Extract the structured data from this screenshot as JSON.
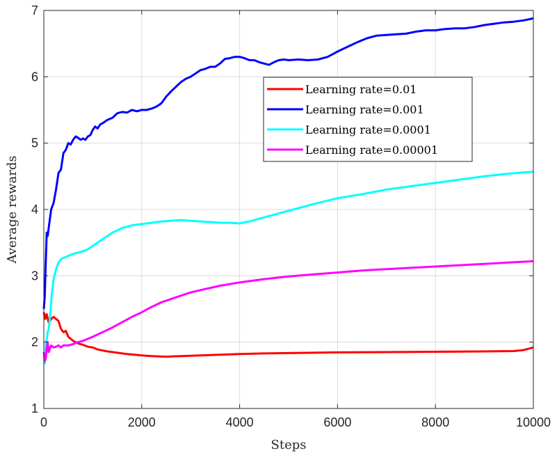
{
  "chart_data": {
    "type": "line",
    "title": "",
    "xlabel": "Steps",
    "ylabel": "Average rewards",
    "xlim": [
      0,
      10000
    ],
    "ylim": [
      1,
      7
    ],
    "xticks": [
      0,
      2000,
      4000,
      6000,
      8000,
      10000
    ],
    "xtick_labels": [
      "0",
      "2000",
      "4000",
      "6000",
      "8000",
      "10000"
    ],
    "yticks": [
      1,
      2,
      3,
      4,
      5,
      6,
      7
    ],
    "ytick_labels": [
      "1",
      "2",
      "3",
      "4",
      "5",
      "6",
      "7"
    ],
    "grid": true,
    "legend_position": "upper-right, inside plot",
    "series": [
      {
        "name": "Learning rate=0.01",
        "color": "#ff0000",
        "x": [
          0,
          30,
          60,
          100,
          150,
          200,
          250,
          300,
          350,
          400,
          450,
          500,
          600,
          700,
          800,
          900,
          1000,
          1100,
          1300,
          1500,
          1700,
          2000,
          2200,
          2500,
          2800,
          3200,
          3600,
          4000,
          4500,
          5000,
          5500,
          6000,
          7000,
          8000,
          9000,
          9600,
          9800,
          10000
        ],
        "y": [
          2.45,
          2.35,
          2.42,
          2.3,
          2.35,
          2.38,
          2.35,
          2.32,
          2.2,
          2.15,
          2.17,
          2.08,
          2.02,
          1.98,
          1.96,
          1.93,
          1.92,
          1.89,
          1.86,
          1.84,
          1.82,
          1.8,
          1.79,
          1.78,
          1.79,
          1.8,
          1.81,
          1.82,
          1.83,
          1.835,
          1.84,
          1.845,
          1.85,
          1.855,
          1.86,
          1.865,
          1.88,
          1.92
        ]
      },
      {
        "name": "Learning rate=0.001",
        "color": "#0000ff",
        "x": [
          0,
          20,
          40,
          60,
          80,
          100,
          150,
          200,
          250,
          300,
          350,
          400,
          450,
          500,
          550,
          600,
          650,
          700,
          750,
          800,
          850,
          900,
          950,
          1000,
          1050,
          1100,
          1150,
          1200,
          1300,
          1400,
          1500,
          1600,
          1700,
          1800,
          1900,
          2000,
          2100,
          2200,
          2300,
          2400,
          2500,
          2600,
          2700,
          2800,
          2900,
          3000,
          3100,
          3200,
          3300,
          3400,
          3500,
          3600,
          3700,
          3800,
          3900,
          4000,
          4100,
          4200,
          4300,
          4400,
          4500,
          4600,
          4700,
          4800,
          4900,
          5000,
          5200,
          5400,
          5600,
          5800,
          6000,
          6200,
          6400,
          6600,
          6800,
          7000,
          7200,
          7400,
          7600,
          7800,
          8000,
          8200,
          8400,
          8600,
          8800,
          9000,
          9200,
          9400,
          9600,
          9800,
          10000
        ],
        "y": [
          2.5,
          2.7,
          3.2,
          3.65,
          3.6,
          3.72,
          4.0,
          4.1,
          4.3,
          4.55,
          4.6,
          4.85,
          4.9,
          5.0,
          4.98,
          5.05,
          5.1,
          5.08,
          5.05,
          5.07,
          5.05,
          5.1,
          5.12,
          5.2,
          5.25,
          5.22,
          5.28,
          5.3,
          5.35,
          5.38,
          5.45,
          5.47,
          5.46,
          5.5,
          5.48,
          5.5,
          5.5,
          5.52,
          5.55,
          5.6,
          5.7,
          5.78,
          5.85,
          5.92,
          5.97,
          6.0,
          6.05,
          6.1,
          6.12,
          6.15,
          6.15,
          6.2,
          6.27,
          6.28,
          6.3,
          6.3,
          6.28,
          6.25,
          6.25,
          6.22,
          6.2,
          6.18,
          6.22,
          6.25,
          6.26,
          6.25,
          6.26,
          6.25,
          6.26,
          6.3,
          6.38,
          6.45,
          6.52,
          6.58,
          6.62,
          6.63,
          6.64,
          6.65,
          6.68,
          6.7,
          6.7,
          6.72,
          6.73,
          6.73,
          6.75,
          6.78,
          6.8,
          6.82,
          6.83,
          6.85,
          6.88
        ]
      },
      {
        "name": "Learning rate=0.0001",
        "color": "#00ffff",
        "x": [
          0,
          20,
          40,
          60,
          80,
          100,
          130,
          160,
          200,
          250,
          300,
          350,
          400,
          450,
          500,
          600,
          700,
          800,
          900,
          1000,
          1200,
          1400,
          1600,
          1800,
          2000,
          2200,
          2400,
          2600,
          2800,
          3000,
          3200,
          3400,
          3600,
          3800,
          4000,
          4200,
          4500,
          5000,
          5500,
          6000,
          6500,
          7000,
          7500,
          8000,
          8500,
          9000,
          9500,
          10000
        ],
        "y": [
          1.7,
          1.68,
          1.95,
          2.05,
          2.15,
          2.2,
          2.4,
          2.7,
          2.95,
          3.1,
          3.2,
          3.25,
          3.27,
          3.28,
          3.3,
          3.33,
          3.35,
          3.37,
          3.4,
          3.45,
          3.55,
          3.65,
          3.72,
          3.76,
          3.78,
          3.8,
          3.82,
          3.83,
          3.84,
          3.83,
          3.82,
          3.81,
          3.8,
          3.8,
          3.79,
          3.82,
          3.88,
          3.98,
          4.08,
          4.17,
          4.23,
          4.3,
          4.35,
          4.4,
          4.45,
          4.5,
          4.54,
          4.57
        ]
      },
      {
        "name": "Learning rate=0.00001",
        "color": "#ff00ff",
        "x": [
          0,
          20,
          40,
          60,
          80,
          100,
          150,
          200,
          250,
          300,
          350,
          400,
          500,
          600,
          700,
          800,
          900,
          1000,
          1200,
          1400,
          1600,
          1800,
          2000,
          2200,
          2400,
          2600,
          2800,
          3000,
          3300,
          3600,
          4000,
          4500,
          5000,
          5500,
          6000,
          6500,
          7000,
          7500,
          8000,
          8500,
          9000,
          9500,
          10000
        ],
        "y": [
          1.85,
          1.72,
          1.75,
          1.9,
          2.0,
          1.85,
          1.95,
          1.92,
          1.93,
          1.95,
          1.92,
          1.95,
          1.95,
          1.97,
          2.0,
          2.02,
          2.05,
          2.08,
          2.15,
          2.22,
          2.3,
          2.38,
          2.45,
          2.53,
          2.6,
          2.65,
          2.7,
          2.75,
          2.8,
          2.85,
          2.9,
          2.95,
          2.99,
          3.02,
          3.05,
          3.08,
          3.1,
          3.12,
          3.14,
          3.16,
          3.18,
          3.2,
          3.22
        ]
      }
    ]
  }
}
